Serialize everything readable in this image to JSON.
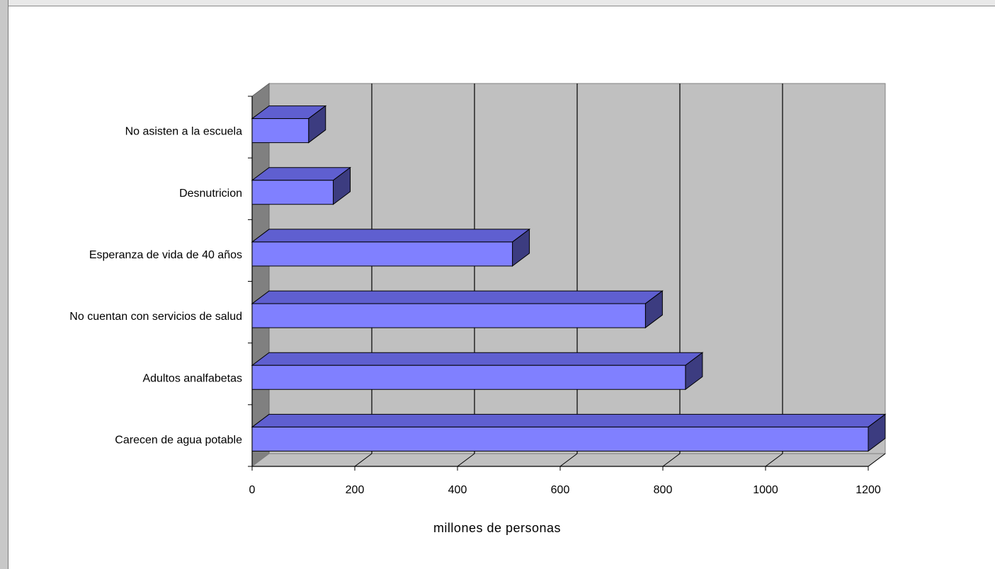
{
  "chart_data": {
    "type": "bar",
    "orientation": "horizontal",
    "style": "3d",
    "categories": [
      "No asisten a la escuela",
      "Desnutricion",
      "Esperanza de vida de 40 años",
      "No cuentan con servicios de salud",
      "Adultos analfabetas",
      "Carecen de agua potable"
    ],
    "values": [
      110,
      158,
      507,
      766,
      844,
      1200
    ],
    "xlabel": "millones de personas",
    "ylabel": "",
    "title": "",
    "xlim": [
      0,
      1200
    ],
    "xticks": [
      "0",
      "200",
      "400",
      "600",
      "800",
      "1000",
      "1200"
    ],
    "grid": true,
    "legend": "none",
    "colors": {
      "bar_front": "#8080ff",
      "bar_top": "#5f5fd0",
      "bar_side": "#3c3c80",
      "plot_back": "#c0c0c0",
      "plot_floor": "#c0c0c0",
      "plot_side_wall": "#808080"
    }
  }
}
